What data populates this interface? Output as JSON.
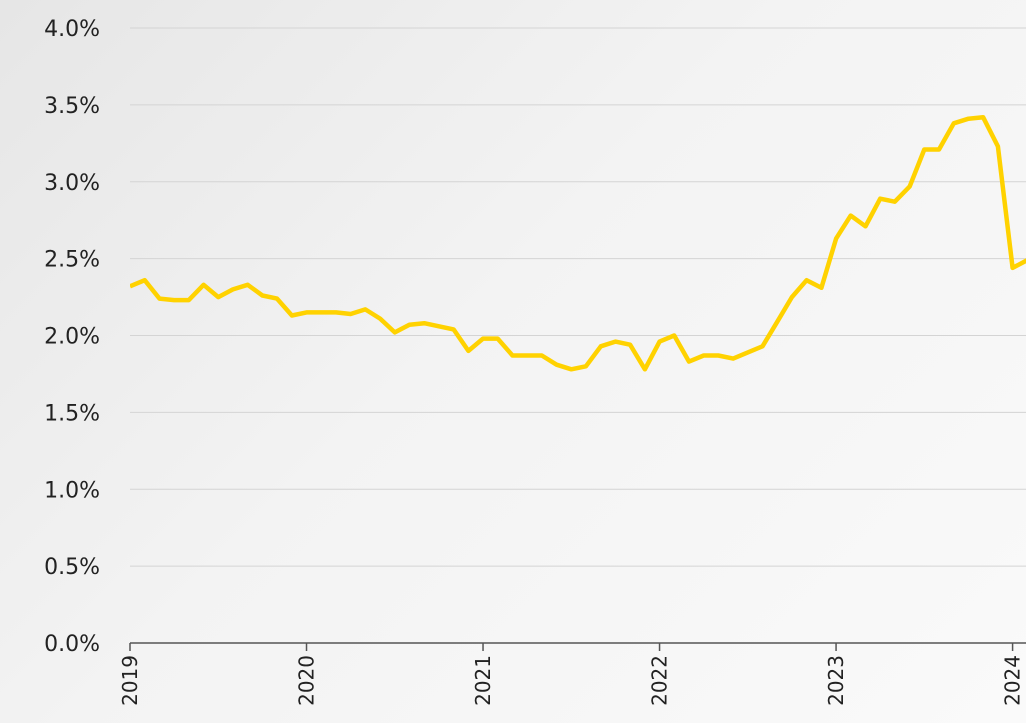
{
  "chart_data": {
    "type": "line",
    "x": [
      2019,
      2019.083,
      2019.167,
      2019.25,
      2019.333,
      2019.417,
      2019.5,
      2019.583,
      2019.667,
      2019.75,
      2019.833,
      2019.917,
      2020,
      2020.083,
      2020.167,
      2020.25,
      2020.333,
      2020.417,
      2020.5,
      2020.583,
      2020.667,
      2020.75,
      2020.833,
      2020.917,
      2021,
      2021.083,
      2021.167,
      2021.25,
      2021.333,
      2021.417,
      2021.5,
      2021.583,
      2021.667,
      2021.75,
      2021.833,
      2021.917,
      2022,
      2022.083,
      2022.167,
      2022.25,
      2022.333,
      2022.417,
      2022.5,
      2022.583,
      2022.667,
      2022.75,
      2022.833,
      2022.917,
      2023,
      2023.083,
      2023.167,
      2023.25,
      2023.333,
      2023.417,
      2023.5,
      2023.583,
      2023.667,
      2023.75,
      2023.833,
      2023.917,
      2024,
      2024.083
    ],
    "series": [
      {
        "color": "#ffd200",
        "values": [
          2.32,
          2.36,
          2.24,
          2.23,
          2.23,
          2.33,
          2.25,
          2.3,
          2.33,
          2.26,
          2.24,
          2.13,
          2.15,
          2.15,
          2.15,
          2.14,
          2.17,
          2.11,
          2.02,
          2.07,
          2.08,
          2.06,
          2.04,
          1.9,
          1.98,
          1.98,
          1.87,
          1.87,
          1.87,
          1.81,
          1.78,
          1.8,
          1.93,
          1.96,
          1.94,
          1.78,
          1.96,
          2.0,
          1.83,
          1.87,
          1.87,
          1.85,
          1.89,
          1.93,
          2.09,
          2.25,
          2.36,
          2.31,
          2.63,
          2.78,
          2.71,
          2.89,
          2.87,
          2.97,
          3.21,
          3.21,
          3.38,
          3.41,
          3.42,
          3.23,
          2.44,
          2.49
        ]
      }
    ],
    "xlim": [
      2019,
      2024.076
    ],
    "xticks": [
      2019,
      2020,
      2021,
      2022,
      2023,
      2024
    ],
    "ylim": [
      0,
      4
    ],
    "yticks": [
      {
        "value": 0,
        "label": "0.0%"
      },
      {
        "value": 0.5,
        "label": "0.5%"
      },
      {
        "value": 1,
        "label": "1.0%"
      },
      {
        "value": 1.5,
        "label": "1.5%"
      },
      {
        "value": 2,
        "label": "2.0%"
      },
      {
        "value": 2.5,
        "label": "2.5%"
      },
      {
        "value": 3,
        "label": "3.0%"
      },
      {
        "value": 3.5,
        "label": "3.5%"
      },
      {
        "value": 4,
        "label": "4.0%"
      }
    ],
    "grid": true
  }
}
